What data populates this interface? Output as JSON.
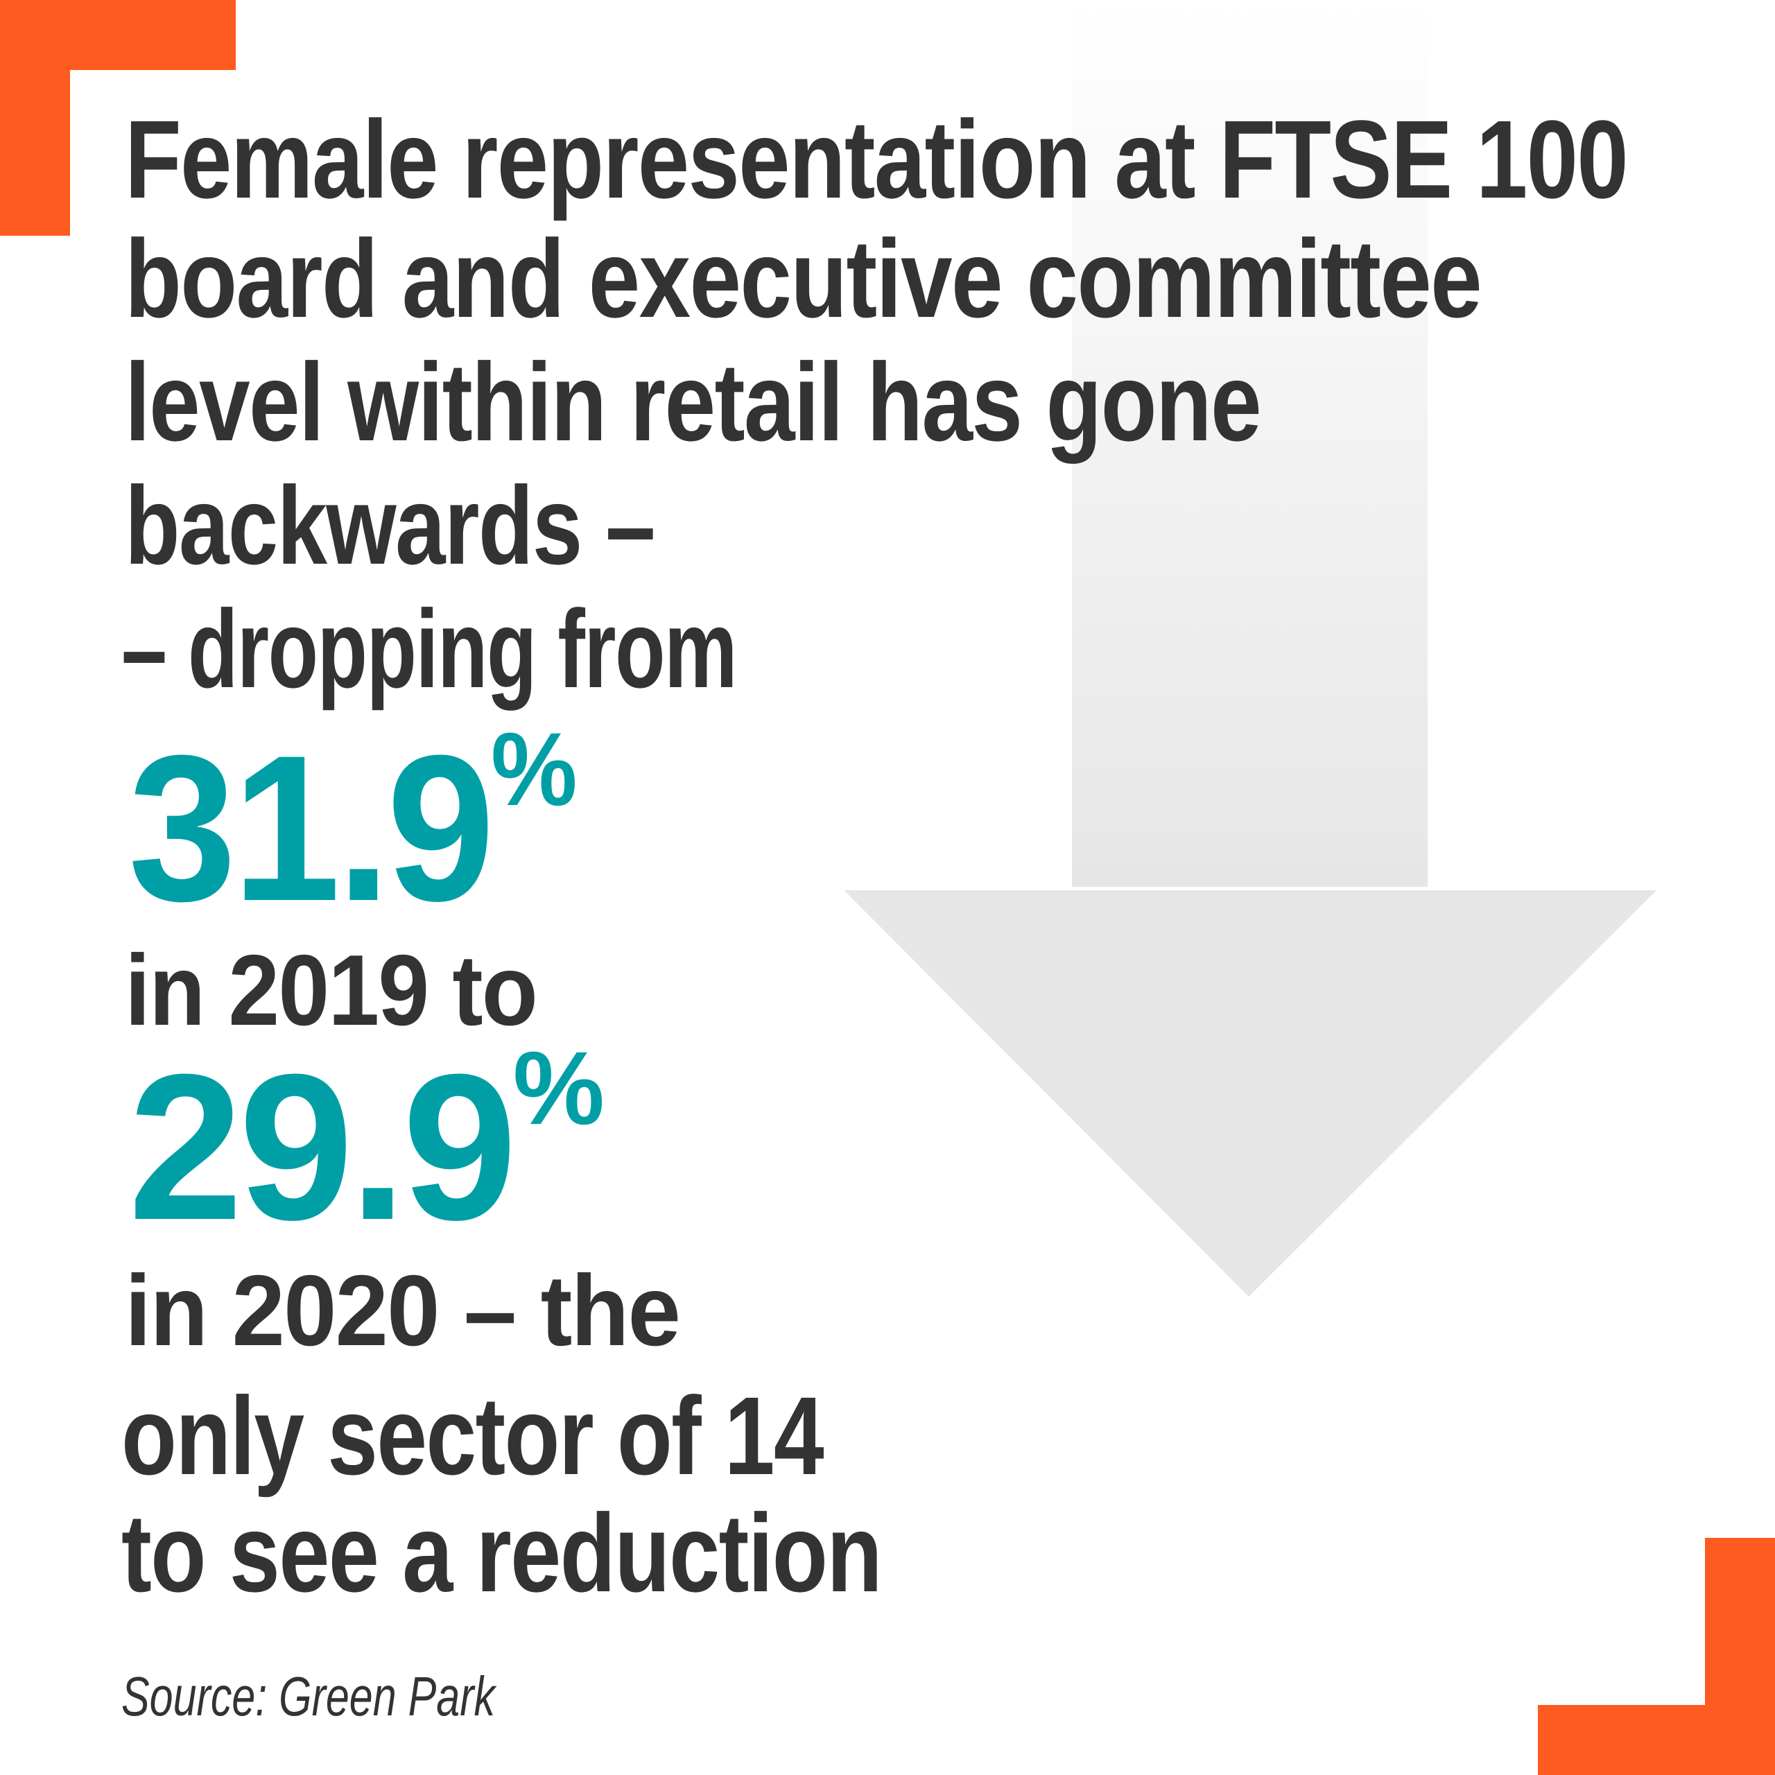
{
  "colors": {
    "accent_orange": "#ff5a1f",
    "teal": "#009fa6",
    "text": "#333333",
    "arrow_gray": "#e6e6e6"
  },
  "headline": {
    "lines": [
      "Female representation at FTSE 100",
      "board and executive committee",
      "level within retail has gone",
      "backwards –",
      "– dropping from"
    ]
  },
  "stat_2019": {
    "value": "31.9",
    "unit": "%",
    "caption": "in 2019 to"
  },
  "stat_2020": {
    "value": "29.9",
    "unit": "%",
    "caption": "in 2020 – the"
  },
  "tail": {
    "lines": [
      "only sector of 14",
      "to see a reduction"
    ]
  },
  "source": "Source: Green Park",
  "icon": "down-arrow-icon"
}
